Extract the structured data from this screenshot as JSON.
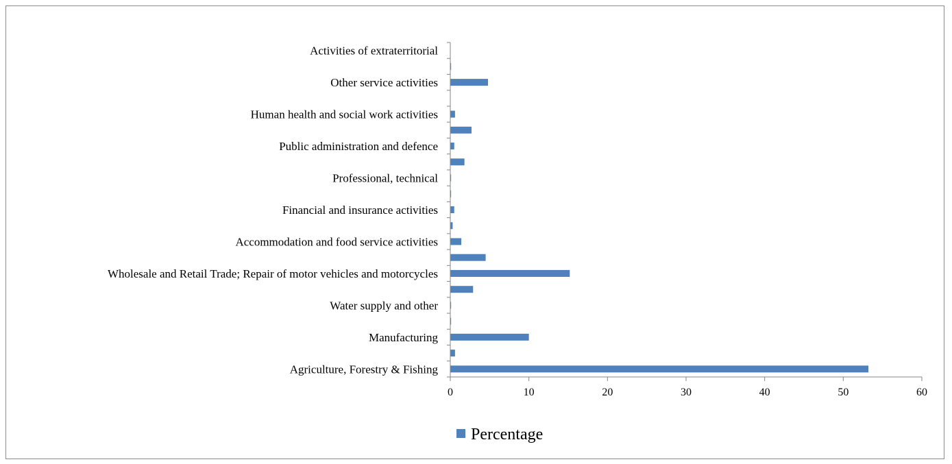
{
  "chart_data": {
    "type": "bar",
    "orientation": "horizontal",
    "categories": [
      "Agriculture, Forestry & Fishing",
      "",
      "Manufacturing",
      "",
      "Water supply and other",
      "",
      "Wholesale and Retail Trade; Repair of motor vehicles and motorcycles",
      "",
      "Accommodation and food service activities",
      "",
      "Financial and insurance activities",
      "",
      "Professional, technical",
      "",
      "Public administration and defence",
      "",
      "Human health and social work activities",
      "",
      "Other service activities",
      "",
      "Activities of extraterritorial"
    ],
    "series": [
      {
        "name": "Percentage",
        "values": [
          53.2,
          0.6,
          10.0,
          0.1,
          0.1,
          2.9,
          15.2,
          4.5,
          1.4,
          0.3,
          0.5,
          0.1,
          0.1,
          1.8,
          0.5,
          2.7,
          0.6,
          0.0,
          4.8,
          0.1,
          0.0
        ]
      }
    ],
    "xlim": [
      0,
      60
    ],
    "xticks": [
      "0",
      "10",
      "20",
      "30",
      "40",
      "50",
      "60"
    ],
    "grid": false,
    "legend_position": "bottom",
    "colors": {
      "bar": "#4f81bd",
      "axis": "#868686"
    }
  }
}
